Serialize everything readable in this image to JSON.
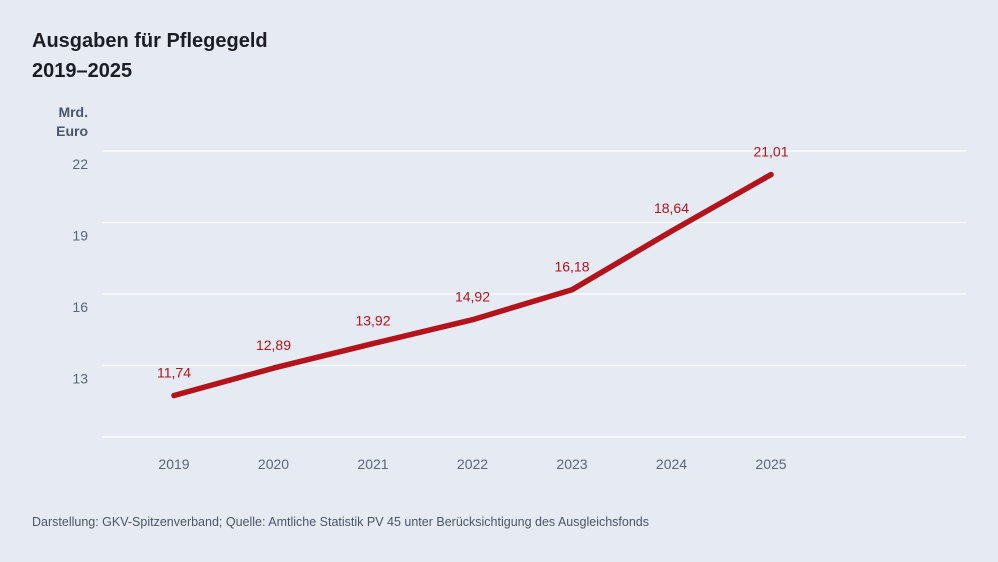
{
  "title": {
    "line1": "Ausgaben für Pflegegeld",
    "line2": "2019–2025"
  },
  "unit": {
    "line1": "Mrd.",
    "line2": "Euro"
  },
  "source": "Darstellung: GKV-Spitzenverband; Quelle: Amtliche Statistik PV 45 unter Berücksichtigung des Ausgleichsfonds",
  "colors": {
    "line": "#b3141c",
    "label": "#b3141c",
    "grid": "#ffffff",
    "tick": "#5b6577",
    "background": "#e6eaf3"
  },
  "chart_data": {
    "type": "line",
    "title": "Ausgaben für Pflegegeld 2019–2025",
    "ylabel": "Mrd. Euro",
    "xlabel": "",
    "categories": [
      "2019",
      "2020",
      "2021",
      "2022",
      "2023",
      "2024",
      "2025"
    ],
    "values": [
      11.74,
      12.89,
      13.92,
      14.92,
      16.18,
      18.64,
      21.01
    ],
    "value_labels": [
      "11,74",
      "12,89",
      "13,92",
      "14,92",
      "16,18",
      "18,64",
      "21,01"
    ],
    "ylim": [
      10,
      22
    ],
    "yticks": [
      13,
      16,
      19,
      22
    ],
    "grid": true,
    "legend": "none"
  }
}
